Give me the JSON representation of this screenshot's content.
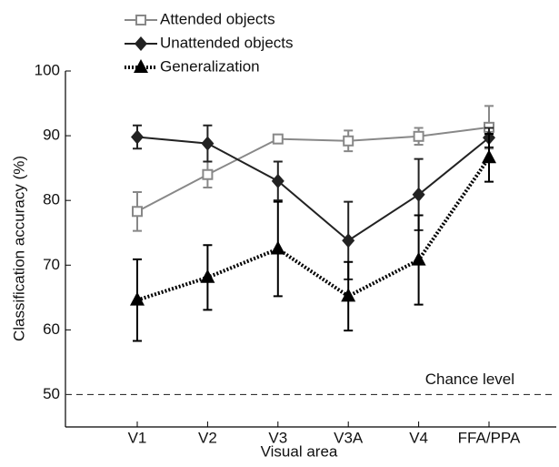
{
  "chart_data": {
    "type": "line",
    "xlabel": "Visual area",
    "ylabel": "Classification accuracy (%)",
    "categories": [
      "V1",
      "V2",
      "V3",
      "V3A",
      "V4",
      "FFA/PPA"
    ],
    "ylim": [
      45,
      100
    ],
    "yticks": [
      50,
      60,
      70,
      80,
      90,
      100
    ],
    "chance": {
      "value": 50,
      "label": "Chance level"
    },
    "series": [
      {
        "name": "Attended objects",
        "color": "#888888",
        "marker": "square",
        "values": [
          78.3,
          84.0,
          89.5,
          89.2,
          89.9,
          91.3
        ],
        "errors": [
          3.0,
          2.0,
          0.6,
          1.6,
          1.3,
          3.3
        ]
      },
      {
        "name": "Unattended objects",
        "color": "#222222",
        "marker": "diamond",
        "values": [
          89.8,
          88.8,
          83.0,
          73.8,
          80.9,
          89.7
        ],
        "errors": [
          1.8,
          2.8,
          3.0,
          6.0,
          5.5,
          1.5
        ]
      },
      {
        "name": "Generalization",
        "color": "#000000",
        "marker": "triangle",
        "dotted": true,
        "values": [
          64.6,
          68.1,
          72.5,
          65.2,
          70.8,
          86.6
        ],
        "errors": [
          6.3,
          5.0,
          7.3,
          5.3,
          6.9,
          3.7
        ]
      }
    ]
  }
}
